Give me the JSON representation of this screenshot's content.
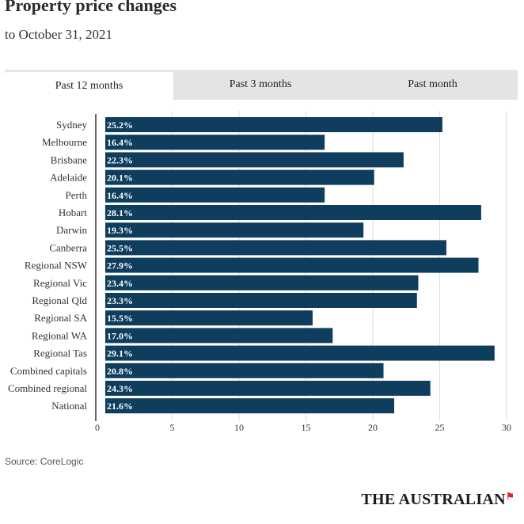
{
  "header": {
    "title": "Property price changes",
    "subtitle": "to October 31, 2021"
  },
  "tabs": [
    {
      "label": "Past 12 months",
      "active": true
    },
    {
      "label": "Past 3 months",
      "active": false
    },
    {
      "label": "Past month",
      "active": false
    }
  ],
  "chart_data": {
    "type": "bar",
    "orientation": "horizontal",
    "categories": [
      "Sydney",
      "Melbourne",
      "Brisbane",
      "Adelaide",
      "Perth",
      "Hobart",
      "Darwin",
      "Canberra",
      "Regional NSW",
      "Regional Vic",
      "Regional Qld",
      "Regional SA",
      "Regional WA",
      "Regional Tas",
      "Combined capitals",
      "Combined regional",
      "National"
    ],
    "values": [
      25.2,
      16.4,
      22.3,
      20.1,
      16.4,
      28.1,
      19.3,
      25.5,
      27.9,
      23.4,
      23.3,
      15.5,
      17.0,
      29.1,
      20.8,
      24.3,
      21.6
    ],
    "data_labels": [
      "25.2%",
      "16.4%",
      "22.3%",
      "20.1%",
      "16.4%",
      "28.1%",
      "19.3%",
      "25.5%",
      "27.9%",
      "23.4%",
      "23.3%",
      "15.5%",
      "17.0%",
      "29.1%",
      "20.8%",
      "24.3%",
      "21.6%"
    ],
    "xlim": [
      0,
      30
    ],
    "x_ticks": [
      0,
      5,
      10,
      15,
      20,
      25,
      30
    ],
    "x_tick_labels": [
      "0",
      "5",
      "10",
      "15",
      "20",
      "25",
      "30"
    ],
    "bar_color": "#0f3d5e",
    "label_color": "#ffffff",
    "grid": true
  },
  "footer": {
    "source": "Source: CoreLogic",
    "brand": "THE AUSTRALIAN",
    "brand_color": "#d8262f",
    "brand_icon": "flag-icon"
  }
}
